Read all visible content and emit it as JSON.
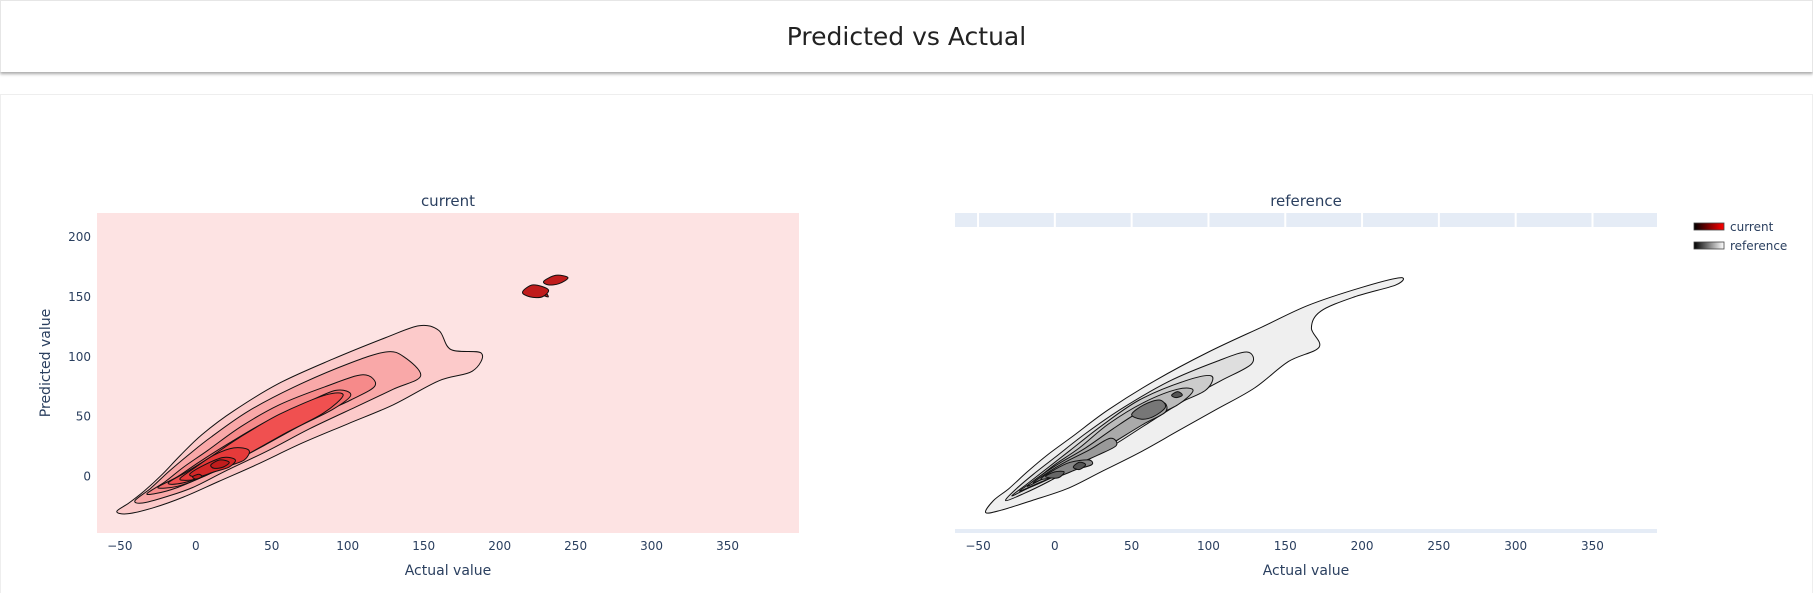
{
  "page": {
    "title": "Predicted vs Actual"
  },
  "chart_data": {
    "type": "contour",
    "legend": {
      "position": "top-right",
      "entries": [
        "current",
        "reference"
      ]
    },
    "legend_colors": {
      "current": [
        "#000000",
        "#ff0000"
      ],
      "reference": [
        "#000000",
        "#ffffff"
      ]
    },
    "subplots": [
      {
        "title": "current",
        "xlabel": "Actual value",
        "ylabel": "Predicted value",
        "xlim": [
          -65,
          397
        ],
        "ylim": [
          -47,
          220
        ],
        "xticks": [
          -50,
          0,
          50,
          100,
          150,
          200,
          250,
          300,
          350
        ],
        "yticks": [
          0,
          50,
          100,
          150,
          200
        ],
        "grid": false,
        "background": "#fde3e3",
        "colors": [
          "#fccaca",
          "#f9a8a8",
          "#f68a8a",
          "#f36c6c",
          "#f05050",
          "#e63a3a",
          "#d42828",
          "#c01c1c"
        ],
        "contours": [
          [
            [
              -52,
              -29
            ],
            [
              -44,
              -22
            ],
            [
              -34,
              -12
            ],
            [
              -22,
              2
            ],
            [
              -10,
              18
            ],
            [
              4,
              35
            ],
            [
              25,
              55
            ],
            [
              55,
              78
            ],
            [
              90,
              98
            ],
            [
              125,
              116
            ],
            [
              147,
              126
            ],
            [
              160,
              122
            ],
            [
              168,
              106
            ],
            [
              188,
              103
            ],
            [
              182,
              88
            ],
            [
              160,
              80
            ],
            [
              130,
              60
            ],
            [
              100,
              44
            ],
            [
              70,
              28
            ],
            [
              40,
              10
            ],
            [
              15,
              -4
            ],
            [
              -8,
              -17
            ],
            [
              -28,
              -26
            ],
            [
              -45,
              -31
            ]
          ],
          [
            [
              -40,
              -20
            ],
            [
              -30,
              -10
            ],
            [
              -18,
              4
            ],
            [
              -5,
              18
            ],
            [
              10,
              33
            ],
            [
              35,
              55
            ],
            [
              65,
              75
            ],
            [
              100,
              94
            ],
            [
              125,
              104
            ],
            [
              137,
              100
            ],
            [
              148,
              84
            ],
            [
              130,
              73
            ],
            [
              105,
              58
            ],
            [
              75,
              40
            ],
            [
              48,
              22
            ],
            [
              20,
              5
            ],
            [
              -2,
              -9
            ],
            [
              -20,
              -17
            ],
            [
              -35,
              -22
            ]
          ],
          [
            [
              -32,
              -14
            ],
            [
              -20,
              -4
            ],
            [
              -8,
              8
            ],
            [
              8,
              22
            ],
            [
              30,
              42
            ],
            [
              55,
              60
            ],
            [
              85,
              75
            ],
            [
              110,
              85
            ],
            [
              118,
              76
            ],
            [
              102,
              64
            ],
            [
              78,
              50
            ],
            [
              52,
              32
            ],
            [
              28,
              15
            ],
            [
              8,
              2
            ],
            [
              -12,
              -9
            ],
            [
              -26,
              -14
            ]
          ],
          [
            [
              -25,
              -9
            ],
            [
              -12,
              0
            ],
            [
              2,
              12
            ],
            [
              22,
              28
            ],
            [
              45,
              45
            ],
            [
              70,
              60
            ],
            [
              92,
              72
            ],
            [
              102,
              68
            ],
            [
              90,
              56
            ],
            [
              68,
              42
            ],
            [
              45,
              26
            ],
            [
              24,
              12
            ],
            [
              5,
              0
            ],
            [
              -12,
              -8
            ]
          ],
          [
            [
              -18,
              -5
            ],
            [
              -6,
              4
            ],
            [
              8,
              15
            ],
            [
              28,
              32
            ],
            [
              55,
              52
            ],
            [
              85,
              68
            ],
            [
              97,
              68
            ],
            [
              84,
              53
            ],
            [
              60,
              37
            ],
            [
              36,
              20
            ],
            [
              17,
              7
            ],
            [
              0,
              -2
            ],
            [
              -12,
              -6
            ]
          ],
          [
            [
              -10,
              -1
            ],
            [
              0,
              8
            ],
            [
              12,
              18
            ],
            [
              25,
              24
            ],
            [
              35,
              22
            ],
            [
              32,
              14
            ],
            [
              22,
              9
            ],
            [
              10,
              3
            ],
            [
              0,
              -2
            ],
            [
              -8,
              -3
            ]
          ],
          [
            [
              -4,
              2
            ],
            [
              6,
              10
            ],
            [
              18,
              16
            ],
            [
              26,
              14
            ],
            [
              22,
              8
            ],
            [
              12,
              4
            ],
            [
              2,
              0
            ]
          ],
          [
            [
              10,
              10
            ],
            [
              16,
              14
            ],
            [
              22,
              12
            ],
            [
              18,
              8
            ],
            [
              12,
              7
            ]
          ],
          [
            [
              -2,
              0
            ],
            [
              2,
              2
            ],
            [
              4,
              0
            ],
            [
              0,
              -2
            ]
          ],
          [
            [
              228,
              152
            ],
            [
              232,
              150
            ],
            [
              230,
              154
            ]
          ],
          [
            [
              215,
              154
            ],
            [
              222,
              160
            ],
            [
              232,
              156
            ],
            [
              228,
              150
            ],
            [
              220,
              150
            ]
          ],
          [
            [
              229,
              163
            ],
            [
              237,
              168
            ],
            [
              245,
              166
            ],
            [
              239,
              161
            ],
            [
              232,
              160
            ]
          ]
        ]
      },
      {
        "title": "reference",
        "xlabel": "Actual value",
        "ylabel": "",
        "xlim": [
          -65,
          392
        ],
        "ylim": [
          -47,
          220
        ],
        "xticks": [
          -50,
          0,
          50,
          100,
          150,
          200,
          250,
          300,
          350
        ],
        "yticks": [],
        "grid": true,
        "background": "#ffffff",
        "colors": [
          "#efefef",
          "#dedede",
          "#cccccc",
          "#bbbbbb",
          "#aaaaaa",
          "#999999",
          "#888888",
          "#777777",
          "#666666",
          "#555555"
        ],
        "contours": [
          [
            [
              -45,
              -30
            ],
            [
              -40,
              -20
            ],
            [
              -30,
              -10
            ],
            [
              -18,
              4
            ],
            [
              -5,
              18
            ],
            [
              12,
              34
            ],
            [
              35,
              56
            ],
            [
              65,
              80
            ],
            [
              100,
              104
            ],
            [
              135,
              125
            ],
            [
              165,
              143
            ],
            [
              200,
              158
            ],
            [
              225,
              166
            ],
            [
              222,
              160
            ],
            [
              195,
              150
            ],
            [
              173,
              138
            ],
            [
              167,
              124
            ],
            [
              172,
              108
            ],
            [
              152,
              96
            ],
            [
              130,
              74
            ],
            [
              105,
              56
            ],
            [
              80,
              38
            ],
            [
              55,
              20
            ],
            [
              30,
              4
            ],
            [
              8,
              -10
            ],
            [
              -15,
              -20
            ],
            [
              -35,
              -28
            ]
          ],
          [
            [
              -32,
              -20
            ],
            [
              -25,
              -10
            ],
            [
              -14,
              2
            ],
            [
              0,
              16
            ],
            [
              20,
              36
            ],
            [
              45,
              58
            ],
            [
              75,
              80
            ],
            [
              105,
              96
            ],
            [
              125,
              104
            ],
            [
              128,
              94
            ],
            [
              108,
              80
            ],
            [
              85,
              64
            ],
            [
              60,
              44
            ],
            [
              38,
              26
            ],
            [
              16,
              10
            ],
            [
              -4,
              -4
            ],
            [
              -20,
              -14
            ]
          ],
          [
            [
              -28,
              -16
            ],
            [
              -18,
              -6
            ],
            [
              -6,
              6
            ],
            [
              10,
              22
            ],
            [
              30,
              42
            ],
            [
              55,
              64
            ],
            [
              85,
              80
            ],
            [
              102,
              84
            ],
            [
              98,
              72
            ],
            [
              78,
              60
            ],
            [
              55,
              44
            ],
            [
              34,
              26
            ],
            [
              14,
              10
            ],
            [
              -4,
              -2
            ],
            [
              -18,
              -10
            ]
          ],
          [
            [
              -23,
              -12
            ],
            [
              -12,
              -2
            ],
            [
              0,
              10
            ],
            [
              16,
              24
            ],
            [
              35,
              44
            ],
            [
              58,
              62
            ],
            [
              80,
              73
            ],
            [
              90,
              72
            ],
            [
              80,
              60
            ],
            [
              58,
              46
            ],
            [
              38,
              28
            ],
            [
              20,
              13
            ],
            [
              3,
              2
            ],
            [
              -12,
              -6
            ]
          ],
          [
            [
              -18,
              -8
            ],
            [
              -8,
              2
            ],
            [
              4,
              12
            ],
            [
              20,
              24
            ],
            [
              38,
              40
            ],
            [
              55,
              54
            ],
            [
              70,
              62
            ],
            [
              72,
              54
            ],
            [
              58,
              44
            ],
            [
              40,
              30
            ],
            [
              22,
              16
            ],
            [
              6,
              6
            ],
            [
              -8,
              -2
            ]
          ],
          [
            [
              -14,
              -5
            ],
            [
              -4,
              4
            ],
            [
              8,
              13
            ],
            [
              22,
              22
            ],
            [
              36,
              32
            ],
            [
              40,
              26
            ],
            [
              28,
              18
            ],
            [
              14,
              10
            ],
            [
              2,
              2
            ],
            [
              -8,
              -2
            ]
          ],
          [
            [
              -9,
              -2
            ],
            [
              0,
              6
            ],
            [
              10,
              12
            ],
            [
              22,
              14
            ],
            [
              24,
              10
            ],
            [
              14,
              6
            ],
            [
              4,
              1
            ]
          ],
          [
            [
              50,
              52
            ],
            [
              58,
              60
            ],
            [
              68,
              64
            ],
            [
              72,
              58
            ],
            [
              64,
              50
            ],
            [
              56,
              48
            ]
          ],
          [
            [
              -6,
              0
            ],
            [
              0,
              4
            ],
            [
              6,
              4
            ],
            [
              2,
              -1
            ]
          ],
          [
            [
              12,
              8
            ],
            [
              16,
              12
            ],
            [
              20,
              10
            ],
            [
              16,
              6
            ]
          ],
          [
            [
              76,
              68
            ],
            [
              80,
              71
            ],
            [
              83,
              68
            ],
            [
              79,
              66
            ]
          ]
        ]
      }
    ]
  }
}
